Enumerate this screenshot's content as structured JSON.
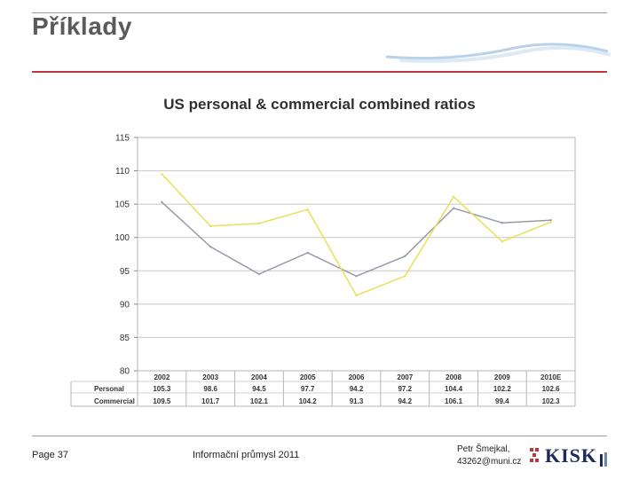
{
  "slide": {
    "title": "Příklady"
  },
  "footer": {
    "page": "Page 37",
    "course": "Informační průmysl 2011",
    "author_name": "Petr Šmejkal,",
    "author_email": "43262@muni.cz",
    "logo_text": "KISK"
  },
  "colors": {
    "accent_rule": "#c0343a",
    "personal_line": "#9999aa",
    "commercial_line": "#e8e05a"
  },
  "chart_data": {
    "type": "line",
    "title": "US personal & commercial combined ratios",
    "xlabel": "",
    "ylabel": "",
    "categories": [
      "2002",
      "2003",
      "2004",
      "2005",
      "2006",
      "2007",
      "2008",
      "2009",
      "2010E"
    ],
    "ylim": [
      80,
      115
    ],
    "yticks": [
      80,
      85,
      90,
      95,
      100,
      105,
      110,
      115
    ],
    "grid": true,
    "series": [
      {
        "name": "Personal",
        "color": "#9999aa",
        "values": [
          105.3,
          98.6,
          94.5,
          97.7,
          94.2,
          97.2,
          104.4,
          102.2,
          102.6
        ],
        "labels": [
          "105.3",
          "98.6",
          "94.5",
          "97.7",
          "94.2",
          "97.2",
          "104.4",
          "102.2",
          "102.6"
        ]
      },
      {
        "name": "Commercial",
        "color": "#e8e05a",
        "values": [
          109.5,
          101.7,
          102.1,
          104.2,
          91.3,
          94.2,
          106.1,
          99.4,
          102.3
        ],
        "labels": [
          "109.5",
          "101.7",
          "102.1",
          "104.2",
          "91.3",
          "94.2",
          "106.1",
          "99.4",
          "102.3"
        ]
      }
    ]
  }
}
